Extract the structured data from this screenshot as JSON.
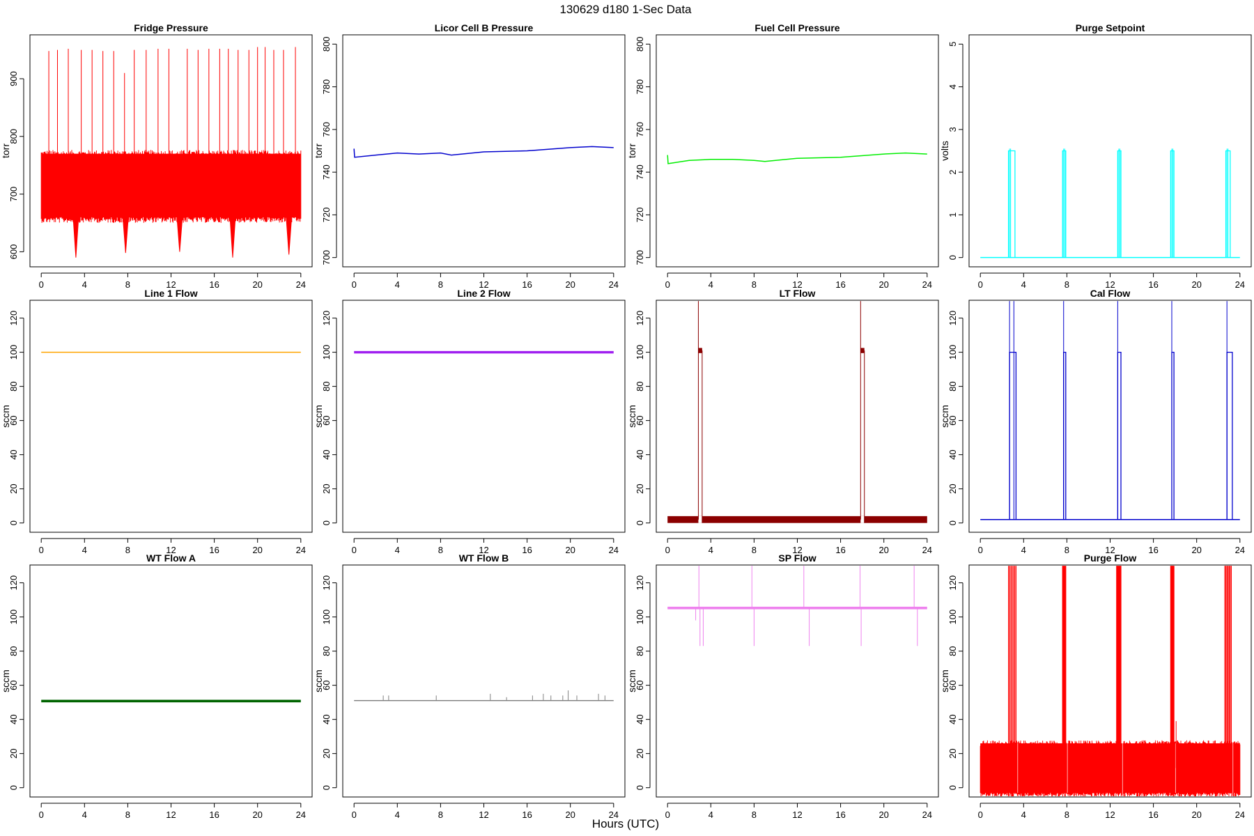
{
  "figure": {
    "title": "130629   d180   1-Sec Data",
    "xlabel": "Hours (UTC)"
  },
  "chart_data": [
    {
      "id": "fridge",
      "type": "line",
      "title": "Fridge Pressure",
      "ylabel": "torr",
      "color": "#ff0000",
      "xlim": [
        0,
        24
      ],
      "ylim": [
        590,
        960
      ],
      "xticks": [
        0,
        4,
        8,
        12,
        16,
        20,
        24
      ],
      "yticks": [
        600,
        700,
        800,
        900
      ],
      "band": {
        "low": 660,
        "high": 770
      },
      "dips": [
        [
          3.2,
          590
        ],
        [
          7.8,
          598
        ],
        [
          12.8,
          600
        ],
        [
          17.7,
          590
        ],
        [
          22.9,
          595
        ]
      ],
      "spikes": [
        [
          0.7,
          948
        ],
        [
          1.5,
          950
        ],
        [
          2.5,
          952
        ],
        [
          3.7,
          950
        ],
        [
          4.7,
          950
        ],
        [
          5.7,
          948
        ],
        [
          6.7,
          948
        ],
        [
          7.7,
          910
        ],
        [
          8.6,
          950
        ],
        [
          9.7,
          950
        ],
        [
          10.8,
          952
        ],
        [
          11.8,
          952
        ],
        [
          13.5,
          952
        ],
        [
          14.5,
          950
        ],
        [
          15.5,
          952
        ],
        [
          16.5,
          952
        ],
        [
          17.3,
          952
        ],
        [
          18.2,
          950
        ],
        [
          19.2,
          950
        ],
        [
          20.0,
          955
        ],
        [
          20.7,
          955
        ],
        [
          21.5,
          950
        ],
        [
          22.4,
          950
        ],
        [
          23.5,
          955
        ]
      ]
    },
    {
      "id": "licor",
      "type": "line",
      "title": "Licor Cell B Pressure",
      "ylabel": "torr",
      "color": "#0000cd",
      "xlim": [
        0,
        24
      ],
      "ylim": [
        700,
        800
      ],
      "xticks": [
        0,
        4,
        8,
        12,
        16,
        20,
        24
      ],
      "yticks": [
        700,
        720,
        740,
        760,
        780,
        800
      ],
      "series": [
        [
          0,
          751
        ],
        [
          0.05,
          747
        ],
        [
          2,
          748
        ],
        [
          4,
          749
        ],
        [
          6,
          748.5
        ],
        [
          8,
          749
        ],
        [
          9,
          748
        ],
        [
          12,
          749.5
        ],
        [
          16,
          750
        ],
        [
          20,
          751.5
        ],
        [
          22,
          752
        ],
        [
          24,
          751.5
        ]
      ]
    },
    {
      "id": "fuelcell",
      "type": "line",
      "title": "Fuel Cell Pressure",
      "ylabel": "torr",
      "color": "#00ee00",
      "xlim": [
        0,
        24
      ],
      "ylim": [
        700,
        800
      ],
      "xticks": [
        0,
        4,
        8,
        12,
        16,
        20,
        24
      ],
      "yticks": [
        700,
        720,
        740,
        760,
        780,
        800
      ],
      "series": [
        [
          0,
          748
        ],
        [
          0.05,
          744
        ],
        [
          2,
          745.5
        ],
        [
          4,
          746
        ],
        [
          6,
          746
        ],
        [
          8,
          745.5
        ],
        [
          9,
          745
        ],
        [
          12,
          746.5
        ],
        [
          16,
          747
        ],
        [
          20,
          748.5
        ],
        [
          22,
          749
        ],
        [
          24,
          748.5
        ]
      ]
    },
    {
      "id": "purgesp",
      "type": "line",
      "title": "Purge Setpoint",
      "ylabel": "volts",
      "color": "#00ffff",
      "xlim": [
        0,
        24
      ],
      "ylim": [
        0,
        5
      ],
      "xticks": [
        0,
        4,
        8,
        12,
        16,
        20,
        24
      ],
      "yticks": [
        0,
        1,
        2,
        3,
        4,
        5
      ],
      "base": 0,
      "pulses": [
        [
          2.6,
          3.2,
          2.5
        ],
        [
          7.6,
          7.9,
          2.5
        ],
        [
          12.7,
          13.0,
          2.5
        ],
        [
          17.6,
          17.9,
          2.5
        ],
        [
          22.7,
          23.1,
          2.5
        ]
      ]
    },
    {
      "id": "line1",
      "type": "line",
      "title": "Line 1 Flow",
      "ylabel": "sccm",
      "color": "#ffa500",
      "xlim": [
        0,
        24
      ],
      "ylim": [
        0,
        125
      ],
      "xticks": [
        0,
        4,
        8,
        12,
        16,
        20,
        24
      ],
      "yticks": [
        0,
        20,
        40,
        60,
        80,
        100,
        120
      ],
      "series": [
        [
          0,
          100
        ],
        [
          24,
          100
        ]
      ]
    },
    {
      "id": "line2",
      "type": "line",
      "title": "Line 2 Flow",
      "ylabel": "sccm",
      "color": "#a020f0",
      "xlim": [
        0,
        24
      ],
      "ylim": [
        0,
        125
      ],
      "xticks": [
        0,
        4,
        8,
        12,
        16,
        20,
        24
      ],
      "yticks": [
        0,
        20,
        40,
        60,
        80,
        100,
        120
      ],
      "series": [
        [
          0,
          100
        ],
        [
          24,
          100
        ]
      ]
    },
    {
      "id": "ltflow",
      "type": "line",
      "title": "LT Flow",
      "ylabel": "sccm",
      "color": "#8b0000",
      "xlim": [
        0,
        24
      ],
      "ylim": [
        0,
        125
      ],
      "xticks": [
        0,
        4,
        8,
        12,
        16,
        20,
        24
      ],
      "yticks": [
        0,
        20,
        40,
        60,
        80,
        100,
        120
      ],
      "band": {
        "low": 0,
        "high": 4
      },
      "pulses": [
        [
          2.85,
          3.2,
          101
        ],
        [
          17.85,
          18.2,
          101
        ]
      ],
      "spikes": [
        [
          2.85,
          130
        ],
        [
          17.85,
          130
        ]
      ]
    },
    {
      "id": "calflow",
      "type": "line",
      "title": "Cal Flow",
      "ylabel": "sccm",
      "color": "#0000cd",
      "xlim": [
        0,
        24
      ],
      "ylim": [
        0,
        125
      ],
      "xticks": [
        0,
        4,
        8,
        12,
        16,
        20,
        24
      ],
      "yticks": [
        0,
        20,
        40,
        60,
        80,
        100,
        120
      ],
      "base": 2,
      "pulses": [
        [
          2.7,
          3.3,
          100
        ],
        [
          7.7,
          7.9,
          100
        ],
        [
          12.7,
          13.0,
          100
        ],
        [
          17.7,
          17.9,
          100
        ],
        [
          22.8,
          23.3,
          100
        ]
      ],
      "spikes": [
        [
          2.7,
          130
        ],
        [
          3.1,
          130
        ],
        [
          7.7,
          130
        ],
        [
          12.7,
          130
        ],
        [
          17.7,
          130
        ],
        [
          22.8,
          130
        ]
      ]
    },
    {
      "id": "wta",
      "type": "line",
      "title": "WT Flow A",
      "ylabel": "sccm",
      "color": "#006400",
      "xlim": [
        0,
        24
      ],
      "ylim": [
        0,
        125
      ],
      "xticks": [
        0,
        4,
        8,
        12,
        16,
        20,
        24
      ],
      "yticks": [
        0,
        20,
        40,
        60,
        80,
        100,
        120
      ],
      "band": {
        "low": 50,
        "high": 51.5
      }
    },
    {
      "id": "wtb",
      "type": "line",
      "title": "WT Flow B",
      "ylabel": "sccm",
      "color": "#808080",
      "xlim": [
        0,
        24
      ],
      "ylim": [
        0,
        125
      ],
      "xticks": [
        0,
        4,
        8,
        12,
        16,
        20,
        24
      ],
      "yticks": [
        0,
        20,
        40,
        60,
        80,
        100,
        120
      ],
      "base": 51,
      "spikes": [
        [
          2.7,
          54
        ],
        [
          3.2,
          54
        ],
        [
          7.6,
          54
        ],
        [
          12.6,
          55
        ],
        [
          14.1,
          53
        ],
        [
          16.5,
          54
        ],
        [
          17.5,
          55
        ],
        [
          18.2,
          54
        ],
        [
          19.3,
          54
        ],
        [
          19.8,
          57
        ],
        [
          20.6,
          54
        ],
        [
          22.6,
          55
        ],
        [
          23.2,
          54
        ]
      ]
    },
    {
      "id": "spflow",
      "type": "line",
      "title": "SP Flow",
      "ylabel": "sccm",
      "color": "#ee82ee",
      "xlim": [
        0,
        24
      ],
      "ylim": [
        0,
        125
      ],
      "xticks": [
        0,
        4,
        8,
        12,
        16,
        20,
        24
      ],
      "yticks": [
        0,
        20,
        40,
        60,
        80,
        100,
        120
      ],
      "band": {
        "low": 104.5,
        "high": 106
      },
      "spikes": [
        [
          2.9,
          130
        ],
        [
          7.8,
          130
        ],
        [
          12.6,
          130
        ],
        [
          17.8,
          130
        ],
        [
          22.8,
          130
        ]
      ],
      "dips": [
        [
          2.6,
          98
        ],
        [
          3.0,
          83
        ],
        [
          3.3,
          83
        ],
        [
          8.0,
          83
        ],
        [
          13.1,
          83
        ],
        [
          17.9,
          83
        ],
        [
          23.1,
          83
        ]
      ]
    },
    {
      "id": "purgeflow",
      "type": "line",
      "title": "Purge Flow",
      "ylabel": "sccm",
      "color": "#ff0000",
      "xlim": [
        0,
        24
      ],
      "ylim": [
        0,
        125
      ],
      "xticks": [
        0,
        4,
        8,
        12,
        16,
        20,
        24
      ],
      "yticks": [
        0,
        20,
        40,
        60,
        80,
        100,
        120
      ],
      "band": {
        "low": -3,
        "high": 26
      },
      "pulses": [
        [
          2.6,
          3.3,
          130
        ],
        [
          7.6,
          7.9,
          130
        ],
        [
          12.6,
          13.0,
          130
        ],
        [
          17.6,
          17.9,
          130
        ],
        [
          22.6,
          23.2,
          130
        ]
      ],
      "spikes": [
        [
          18.1,
          39
        ]
      ]
    }
  ]
}
